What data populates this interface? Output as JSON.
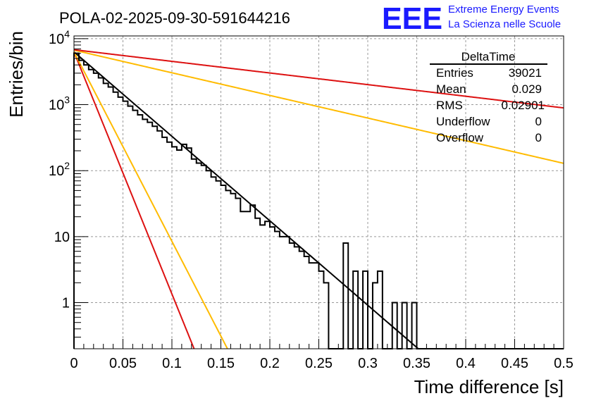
{
  "chart_data": {
    "type": "histogram",
    "title": "POLA-02-2025-09-30-591644216",
    "xlabel": "Time difference [s]",
    "ylabel": "Entries/bin",
    "xlim": [
      0,
      0.5
    ],
    "ylim": [
      0.2,
      11000
    ],
    "yscale": "log",
    "grid": true,
    "x_ticks": [
      "0",
      "0.05",
      "0.1",
      "0.15",
      "0.2",
      "0.25",
      "0.3",
      "0.35",
      "0.4",
      "0.45",
      "0.5"
    ],
    "x_tick_values": [
      0,
      0.05,
      0.1,
      0.15,
      0.2,
      0.25,
      0.3,
      0.35,
      0.4,
      0.45,
      0.5
    ],
    "y_ticks": [
      "1",
      "10",
      "10^2",
      "10^3",
      "10^4"
    ],
    "y_tick_values": [
      1,
      10,
      100,
      1000,
      10000
    ],
    "bin_width": 0.005,
    "histogram_values": [
      6000,
      4700,
      4000,
      3400,
      3000,
      2550,
      2100,
      1850,
      1550,
      1300,
      1130,
      950,
      820,
      700,
      600,
      540,
      470,
      400,
      320,
      270,
      230,
      205,
      250,
      220,
      150,
      130,
      120,
      100,
      80,
      70,
      60,
      50,
      45,
      38,
      24,
      24,
      30,
      19,
      15,
      17,
      14,
      12,
      10,
      10,
      8,
      7,
      6,
      5,
      4,
      4,
      3,
      2,
      0,
      0,
      0,
      8,
      0,
      3,
      0,
      3,
      0,
      2,
      3,
      0,
      0,
      1,
      0,
      1,
      0,
      1,
      0,
      0,
      0,
      0,
      0,
      0,
      0,
      0,
      0,
      0,
      0,
      0,
      0,
      0,
      0,
      0,
      0,
      0,
      0,
      0,
      0,
      0,
      0,
      0,
      0,
      0,
      0,
      0,
      0,
      0
    ],
    "fit_lines": [
      {
        "name": "fit",
        "color": "#000000",
        "y0": 6300,
        "tau": 0.03394
      },
      {
        "name": "red-steep",
        "color": "#dd1111",
        "y0": 6300,
        "tau": 0.01184
      },
      {
        "name": "yellow-steep",
        "color": "#ffbb00",
        "y0": 6300,
        "tau": 0.01513
      },
      {
        "name": "yellow-shallow",
        "color": "#ffbb00",
        "y0": 6700,
        "tau": 0.1266
      },
      {
        "name": "red-shallow",
        "color": "#dd1111",
        "y0": 6800,
        "tau": 0.2463
      }
    ],
    "stats": {
      "name": "DeltaTime",
      "rows": [
        {
          "label": "Entries",
          "value": "39021"
        },
        {
          "label": "Mean",
          "value": "0.029"
        },
        {
          "label": "RMS",
          "value": "0.02901"
        },
        {
          "label": "Underflow",
          "value": "0"
        },
        {
          "label": "Overflow",
          "value": "0"
        }
      ]
    }
  },
  "logo": {
    "mark": "EEE",
    "line1": "Extreme Energy Events",
    "line2": "La Scienza nelle Scuole"
  }
}
